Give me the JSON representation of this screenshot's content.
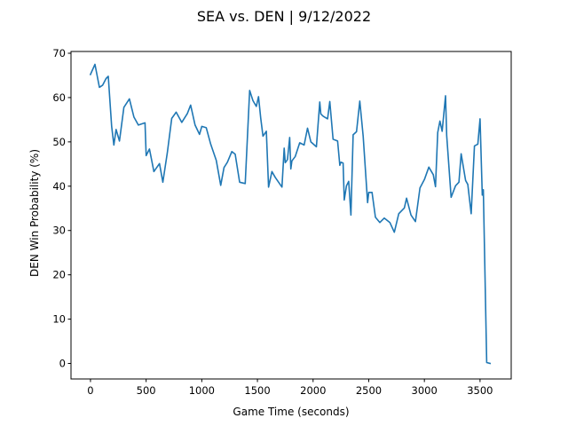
{
  "chart_data": {
    "type": "line",
    "title": "SEA vs. DEN | 9/12/2022",
    "xlabel": "Game Time (seconds)",
    "ylabel": "DEN Win Probability (%)",
    "xlim": [
      -175,
      3780
    ],
    "ylim": [
      -3.5,
      70.4
    ],
    "xticks": [
      0,
      500,
      1000,
      1500,
      2000,
      2500,
      3000,
      3500
    ],
    "yticks": [
      0,
      10,
      20,
      30,
      40,
      50,
      60,
      70
    ],
    "grid": false,
    "legend": "none",
    "line_color": "#1f77b4",
    "series": [
      {
        "x": [
          0,
          40,
          80,
          110,
          140,
          160,
          190,
          210,
          230,
          260,
          300,
          350,
          390,
          430,
          490,
          500,
          530,
          570,
          620,
          650,
          690,
          730,
          770,
          820,
          870,
          900,
          940,
          980,
          1000,
          1040,
          1080,
          1130,
          1170,
          1200,
          1230,
          1270,
          1300,
          1340,
          1390,
          1430,
          1460,
          1490,
          1510,
          1530,
          1550,
          1580,
          1600,
          1630,
          1660,
          1720,
          1740,
          1750,
          1770,
          1790,
          1800,
          1810,
          1840,
          1880,
          1920,
          1950,
          1980,
          2030,
          2060,
          2070,
          2090,
          2130,
          2150,
          2180,
          2220,
          2240,
          2250,
          2270,
          2280,
          2300,
          2320,
          2340,
          2360,
          2390,
          2420,
          2450,
          2490,
          2500,
          2530,
          2560,
          2600,
          2640,
          2690,
          2730,
          2770,
          2820,
          2840,
          2880,
          2920,
          2960,
          3000,
          3040,
          3080,
          3100,
          3120,
          3140,
          3160,
          3190,
          3200,
          3240,
          3280,
          3310,
          3330,
          3370,
          3390,
          3420,
          3450,
          3480,
          3500,
          3520,
          3530,
          3560,
          3590
        ],
        "y": [
          65.2,
          67.5,
          62.3,
          62.8,
          64.3,
          64.8,
          53.5,
          49.3,
          52.8,
          50.2,
          57.8,
          59.7,
          55.6,
          53.8,
          54.3,
          46.9,
          48.4,
          43.3,
          45.1,
          40.9,
          47.5,
          55.3,
          56.7,
          54.4,
          56.4,
          58.3,
          53.8,
          51.7,
          53.5,
          53.2,
          49.5,
          45.8,
          40.2,
          44.2,
          45.4,
          47.8,
          47.2,
          40.9,
          40.6,
          61.6,
          59.3,
          58.0,
          60.2,
          55.3,
          51.3,
          52.4,
          39.8,
          43.3,
          42.0,
          39.8,
          48.6,
          45.3,
          46.0,
          51.0,
          43.9,
          45.7,
          46.7,
          49.8,
          49.3,
          53.1,
          50.0,
          48.9,
          59.0,
          56.3,
          55.8,
          55.2,
          59.1,
          50.6,
          50.2,
          44.7,
          45.4,
          45.2,
          36.9,
          40.1,
          41.1,
          33.5,
          51.6,
          52.3,
          59.2,
          51.3,
          36.3,
          38.6,
          38.6,
          33.0,
          31.8,
          32.8,
          31.8,
          29.6,
          33.8,
          35.1,
          37.3,
          33.5,
          32.0,
          39.6,
          41.5,
          44.3,
          42.6,
          39.9,
          52.1,
          54.7,
          52.4,
          60.4,
          51.5,
          37.5,
          40.1,
          40.9,
          47.3,
          41.3,
          40.4,
          33.8,
          49.1,
          49.5,
          55.2,
          38.0,
          39.2,
          0.2,
          0.0
        ]
      }
    ]
  }
}
